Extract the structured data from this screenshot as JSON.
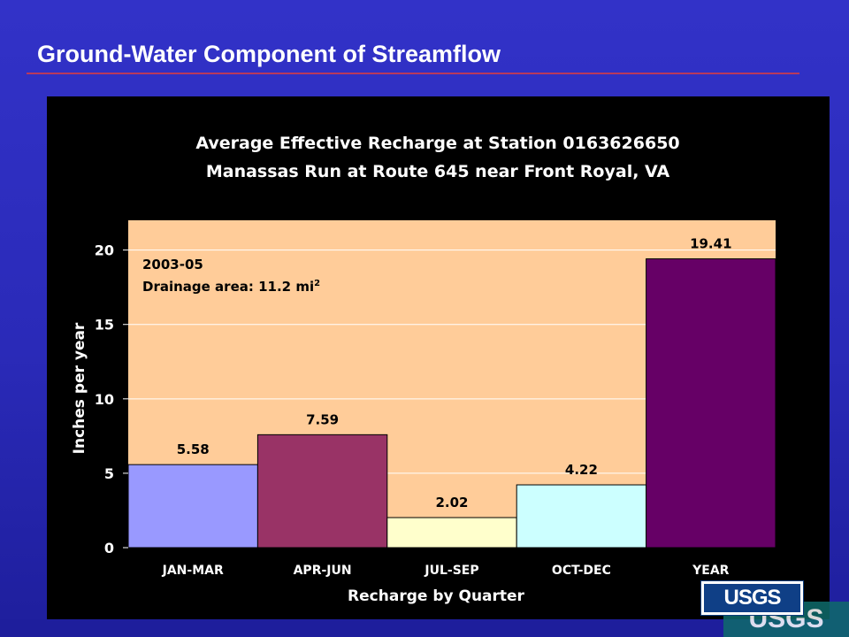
{
  "slide": {
    "title": "Ground-Water Component of Streamflow",
    "logo_text": "USGS"
  },
  "colors": {
    "background": "#2a2ab8",
    "title_rule": "#b83a5c",
    "plot_area": "#ffcc99",
    "panel": "#000000"
  },
  "chart_data": {
    "type": "bar",
    "title": "Average Effective Recharge at Station 0163626650",
    "subtitle": "Manassas Run at Route 645 near Front Royal, VA",
    "xlabel": "Recharge by Quarter",
    "ylabel": "Inches per year",
    "categories": [
      "JAN-MAR",
      "APR-JUN",
      "JUL-SEP",
      "OCT-DEC",
      "YEAR"
    ],
    "values": [
      5.58,
      7.59,
      2.02,
      4.22,
      19.41
    ],
    "value_labels": [
      "5.58",
      "7.59",
      "2.02",
      "4.22",
      "19.41"
    ],
    "bar_colors": [
      "#9999ff",
      "#993366",
      "#ffffcc",
      "#ccffff",
      "#660066"
    ],
    "ylim": [
      0,
      22
    ],
    "yticks": [
      0,
      5,
      10,
      15,
      20
    ],
    "ytick_labels": [
      "0",
      "5",
      "10",
      "15",
      "20"
    ],
    "grid": true,
    "legend": "none",
    "annotation": {
      "period": "2003-05",
      "drainage_prefix": "Drainage area: 11.2 mi",
      "drainage_sup": "2"
    }
  }
}
